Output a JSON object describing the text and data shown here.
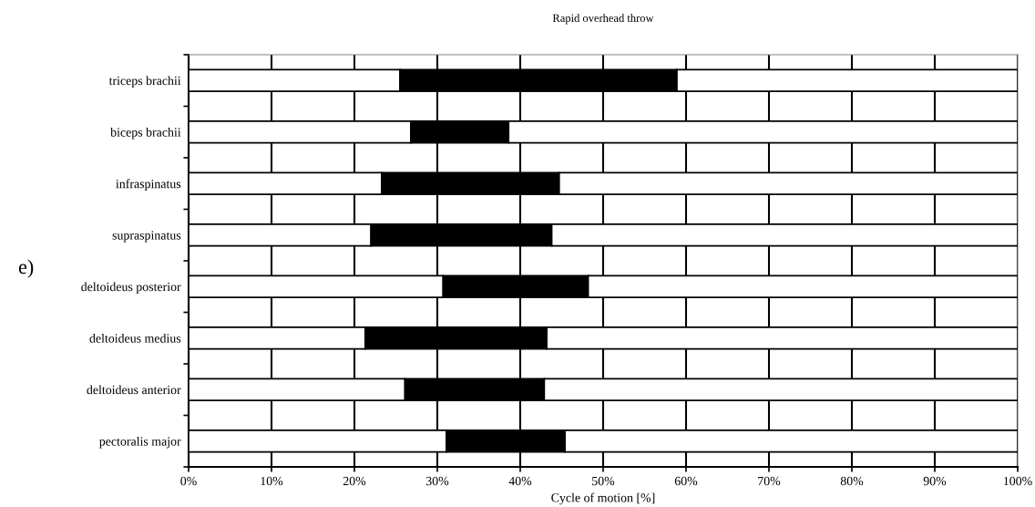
{
  "chart_data": {
    "type": "bar",
    "orientation": "horizontal",
    "stacked": true,
    "title": "Rapid overhead throw",
    "xlabel": "Cycle of motion [%]",
    "categories": [
      "triceps brachii",
      "biceps brachii",
      "infraspinatus",
      "supraspinatus",
      "deltoideus posterior",
      "deltoideus medius",
      "deltoideus anterior",
      "pectoralis major"
    ],
    "series": [
      {
        "color": "#ffffff",
        "values": [
          25.5,
          26.8,
          23.3,
          22.0,
          30.7,
          21.3,
          26.1,
          31.1
        ]
      },
      {
        "color": "#000000",
        "values": [
          33.4,
          11.8,
          21.4,
          21.8,
          17.5,
          21.9,
          16.8,
          14.3
        ]
      },
      {
        "color": "#ffffff",
        "values": [
          41.1,
          61.4,
          55.3,
          56.2,
          51.8,
          56.8,
          57.1,
          54.6
        ]
      }
    ],
    "xlim": [
      0,
      100
    ],
    "xticks": [
      {
        "value": 0,
        "label": "0%"
      },
      {
        "value": 10,
        "label": "10%"
      },
      {
        "value": 20,
        "label": "20%"
      },
      {
        "value": 30,
        "label": "30%"
      },
      {
        "value": 40,
        "label": "40%"
      },
      {
        "value": 50,
        "label": "50%"
      },
      {
        "value": 60,
        "label": "60%"
      },
      {
        "value": 70,
        "label": "70%"
      },
      {
        "value": 80,
        "label": "80%"
      },
      {
        "value": 90,
        "label": "90%"
      },
      {
        "value": 100,
        "label": "100%"
      }
    ],
    "grid": "x",
    "legend": false,
    "annotations": [
      "e)"
    ]
  }
}
